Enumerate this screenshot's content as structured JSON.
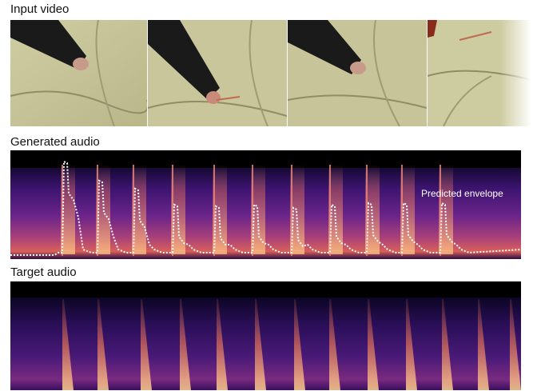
{
  "sections": {
    "input_video": {
      "title": "Input video",
      "frame_count": 4
    },
    "generated_audio": {
      "title": "Generated audio",
      "envelope_label": "Predicted envelope"
    },
    "target_audio": {
      "title": "Target audio"
    }
  },
  "colors": {
    "spectrogram_background": "#0a0420",
    "spectrogram_mid": "#5a1f8a",
    "spectrogram_hot": "#f08040",
    "envelope": "#ffffff",
    "couch": "#c8c69a",
    "sleeve": "#1a1a1a"
  },
  "impacts": {
    "generated_count": 11,
    "target_count": 13
  }
}
